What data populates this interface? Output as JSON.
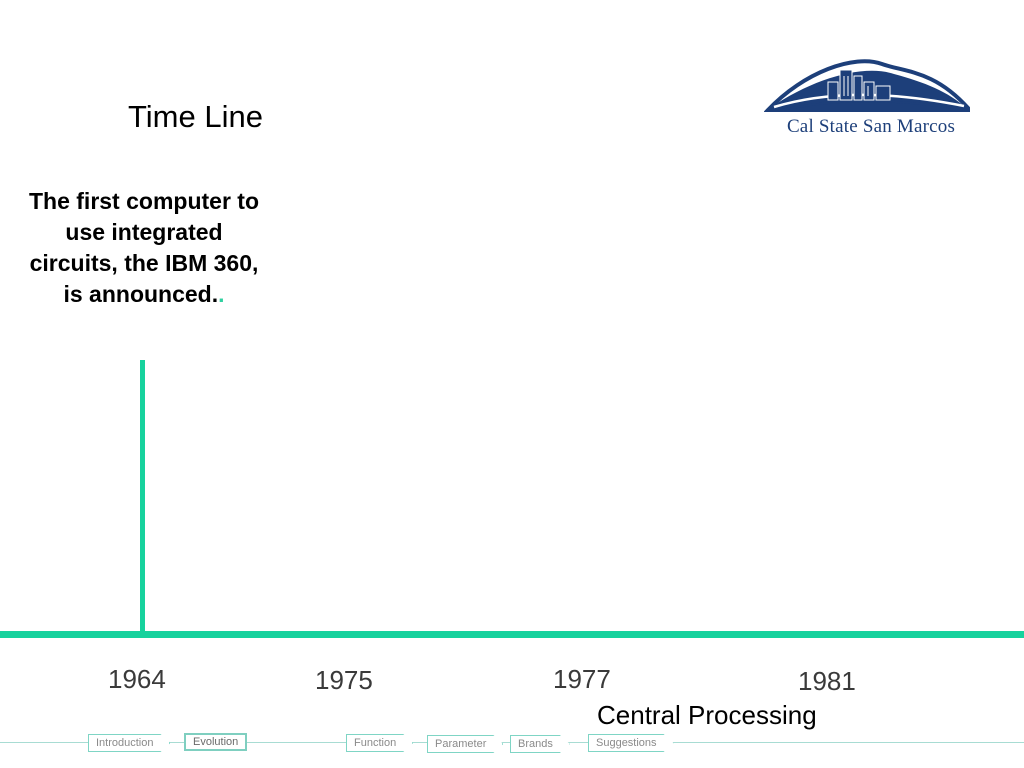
{
  "slide": {
    "title": "Time Line",
    "event": {
      "text": "The first computer to use integrated circuits, the IBM 360, is announced.",
      "trail": "."
    },
    "years": [
      "1964",
      "1975",
      "1977",
      "1981"
    ],
    "subtitle": "Central Processing"
  },
  "logo": {
    "text": "Cal State San Marcos",
    "color": "#1d3f7a"
  },
  "timeline": {
    "color": "#16d29d"
  },
  "nav": {
    "items": [
      {
        "label": "Introduction",
        "active": false
      },
      {
        "label": "Evolution",
        "active": true
      },
      {
        "label": "Function",
        "active": false
      },
      {
        "label": "Parameter",
        "active": false
      },
      {
        "label": "Brands",
        "active": false
      },
      {
        "label": "Suggestions",
        "active": false
      }
    ]
  }
}
